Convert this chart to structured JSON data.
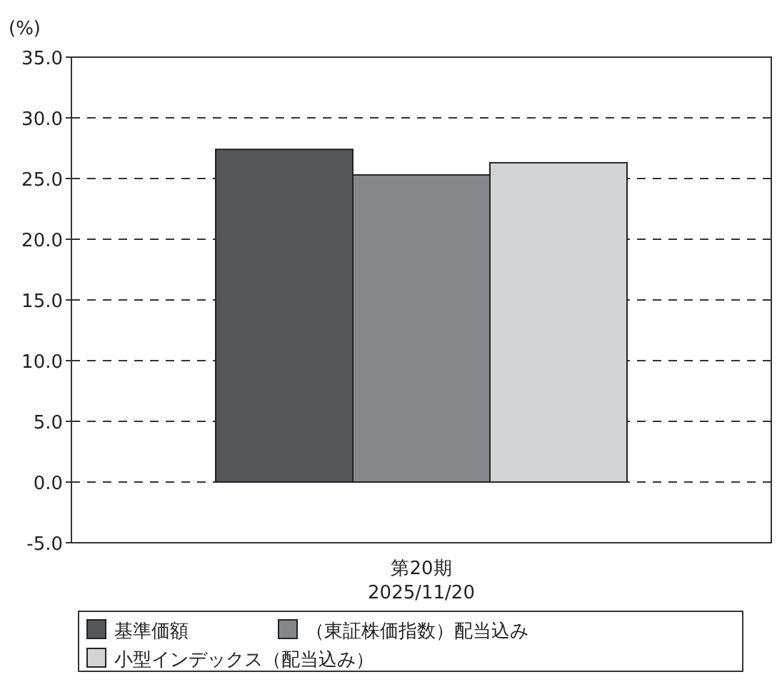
{
  "chart_data": {
    "type": "bar",
    "ylabel": "(%)",
    "categories": [
      "第20期\n2025/11/20"
    ],
    "series": [
      {
        "name": "基準価額",
        "color": "#55565a",
        "values": [
          27.4
        ]
      },
      {
        "name": "（東証株価指数）配当込み",
        "color": "#86878b",
        "values": [
          25.3
        ]
      },
      {
        "name": "小型インデックス（配当込み）",
        "color": "#d3d4d6",
        "values": [
          26.3
        ]
      }
    ],
    "ylim": [
      -5,
      35
    ],
    "yticks": [
      {
        "value": -5,
        "label": "-5.0"
      },
      {
        "value": 0,
        "label": "0.0"
      },
      {
        "value": 5,
        "label": "5.0"
      },
      {
        "value": 10,
        "label": "10.0"
      },
      {
        "value": 15,
        "label": "15.0"
      },
      {
        "value": 20,
        "label": "20.0"
      },
      {
        "value": 25,
        "label": "25.0"
      },
      {
        "value": 30,
        "label": "30.0"
      },
      {
        "value": 35,
        "label": "35.0"
      }
    ],
    "grid": "y",
    "legend": "bottom"
  }
}
